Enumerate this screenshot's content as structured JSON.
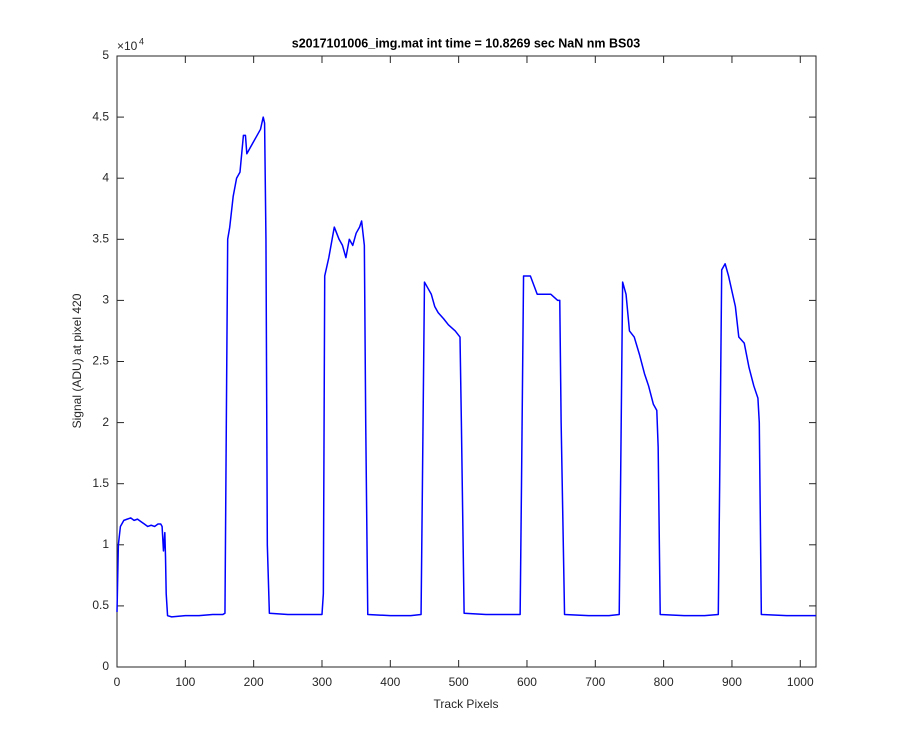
{
  "chart_data": {
    "type": "line",
    "title": "s2017101006_img.mat int time = 10.8269 sec  NaN nm BS03",
    "x_label": "Track Pixels",
    "y_label": "Signal (ADU) at pixel 420",
    "y_multiplier": "×10",
    "y_multiplier_exponent": "4",
    "xlim": [
      0,
      1023
    ],
    "xticks": [
      0,
      100,
      200,
      300,
      400,
      500,
      600,
      700,
      800,
      900,
      1000
    ],
    "ylim": [
      0,
      5
    ],
    "yticks": [
      0,
      0.5,
      1,
      1.5,
      2,
      2.5,
      3,
      3.5,
      4,
      4.5,
      5
    ],
    "box": true,
    "series": [
      {
        "color": "#0000ff",
        "x": [
          0,
          2,
          5,
          10,
          15,
          20,
          25,
          30,
          35,
          40,
          45,
          50,
          55,
          60,
          64,
          66,
          68,
          70,
          71,
          72,
          74,
          80,
          100,
          120,
          140,
          155,
          158,
          160,
          162,
          165,
          170,
          175,
          180,
          185,
          188,
          190,
          195,
          200,
          205,
          210,
          214,
          216,
          218,
          220,
          223,
          250,
          280,
          300,
          302,
          304,
          310,
          318,
          325,
          330,
          335,
          340,
          345,
          350,
          355,
          358,
          362,
          364,
          367,
          400,
          430,
          445,
          447,
          450,
          455,
          460,
          465,
          470,
          478,
          485,
          495,
          502,
          504,
          508,
          540,
          570,
          590,
          592,
          595,
          605,
          615,
          625,
          635,
          645,
          648,
          650,
          655,
          690,
          720,
          735,
          737,
          740,
          745,
          750,
          757,
          765,
          772,
          778,
          785,
          790,
          792,
          795,
          830,
          860,
          880,
          882,
          885,
          890,
          895,
          905,
          910,
          918,
          925,
          932,
          938,
          940,
          943,
          980,
          1023
        ],
        "values": [
          0.45,
          1.0,
          1.15,
          1.2,
          1.21,
          1.22,
          1.2,
          1.21,
          1.19,
          1.17,
          1.15,
          1.16,
          1.15,
          1.17,
          1.17,
          1.15,
          0.95,
          1.1,
          0.9,
          0.6,
          0.42,
          0.41,
          0.42,
          0.42,
          0.43,
          0.43,
          0.44,
          2.0,
          3.5,
          3.6,
          3.85,
          4.0,
          4.05,
          4.35,
          4.35,
          4.2,
          4.25,
          4.3,
          4.35,
          4.4,
          4.5,
          4.45,
          3.5,
          1.0,
          0.44,
          0.43,
          0.43,
          0.43,
          0.6,
          3.2,
          3.35,
          3.6,
          3.5,
          3.45,
          3.35,
          3.5,
          3.45,
          3.55,
          3.6,
          3.65,
          3.45,
          2.0,
          0.43,
          0.42,
          0.42,
          0.43,
          1.5,
          3.15,
          3.1,
          3.05,
          2.95,
          2.9,
          2.85,
          2.8,
          2.75,
          2.7,
          2.0,
          0.44,
          0.43,
          0.43,
          0.43,
          1.5,
          3.2,
          3.2,
          3.05,
          3.05,
          3.05,
          3.0,
          3.0,
          2.0,
          0.43,
          0.42,
          0.42,
          0.43,
          1.5,
          3.15,
          3.05,
          2.75,
          2.7,
          2.55,
          2.4,
          2.3,
          2.15,
          2.1,
          1.8,
          0.43,
          0.42,
          0.42,
          0.43,
          1.5,
          3.25,
          3.3,
          3.2,
          2.95,
          2.7,
          2.65,
          2.45,
          2.3,
          2.2,
          2.0,
          0.43,
          0.42,
          0.42
        ]
      }
    ]
  }
}
